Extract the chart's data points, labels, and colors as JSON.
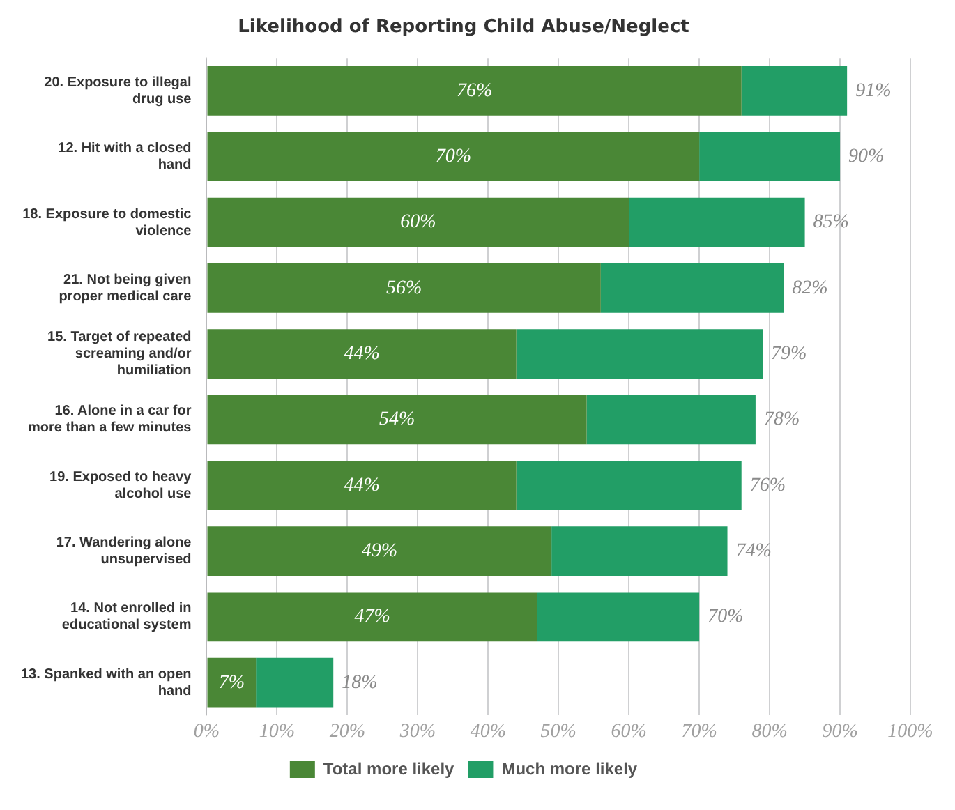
{
  "chart_data": {
    "type": "bar",
    "orientation": "horizontal",
    "stacked": true,
    "title": "Likelihood of Reporting Child Abuse/Neglect",
    "categories": [
      "20. Exposure to illegal drug use",
      "12. Hit with a closed hand",
      "18. Exposure to domestic violence",
      "21. Not being given proper medical care",
      "15. Target of repeated screaming and/or humiliation",
      "16. Alone in a car for more than a few minutes",
      "19. Exposed to heavy alcohol use",
      "17. Wandering alone unsupervised",
      "14. Not enrolled in educational system",
      "13. Spanked with an open hand"
    ],
    "series": [
      {
        "name": "Total more likely",
        "color": "#4a8736",
        "values": [
          76,
          70,
          60,
          56,
          44,
          54,
          44,
          49,
          47,
          7
        ],
        "value_labels": [
          "76%",
          "70%",
          "60%",
          "56%",
          "44%",
          "54%",
          "44%",
          "49%",
          "47%",
          "7%"
        ]
      },
      {
        "name": "Much more likely",
        "color": "#229e66",
        "values": [
          15,
          20,
          25,
          26,
          35,
          24,
          32,
          25,
          23,
          11
        ]
      }
    ],
    "totals": [
      "91%",
      "90%",
      "85%",
      "82%",
      "79%",
      "78%",
      "76%",
      "74%",
      "70%",
      "18%"
    ],
    "xlim": [
      0,
      100
    ],
    "xticks": [
      {
        "value": 0,
        "label": "0%"
      },
      {
        "value": 10,
        "label": "10%"
      },
      {
        "value": 20,
        "label": "20%"
      },
      {
        "value": 30,
        "label": "30%"
      },
      {
        "value": 40,
        "label": "40%"
      },
      {
        "value": 50,
        "label": "50%"
      },
      {
        "value": 60,
        "label": "60%"
      },
      {
        "value": 70,
        "label": "70%"
      },
      {
        "value": 80,
        "label": "80%"
      },
      {
        "value": 90,
        "label": "90%"
      },
      {
        "value": 100,
        "label": "100%"
      }
    ],
    "grid": "x",
    "legend": "bottom"
  }
}
